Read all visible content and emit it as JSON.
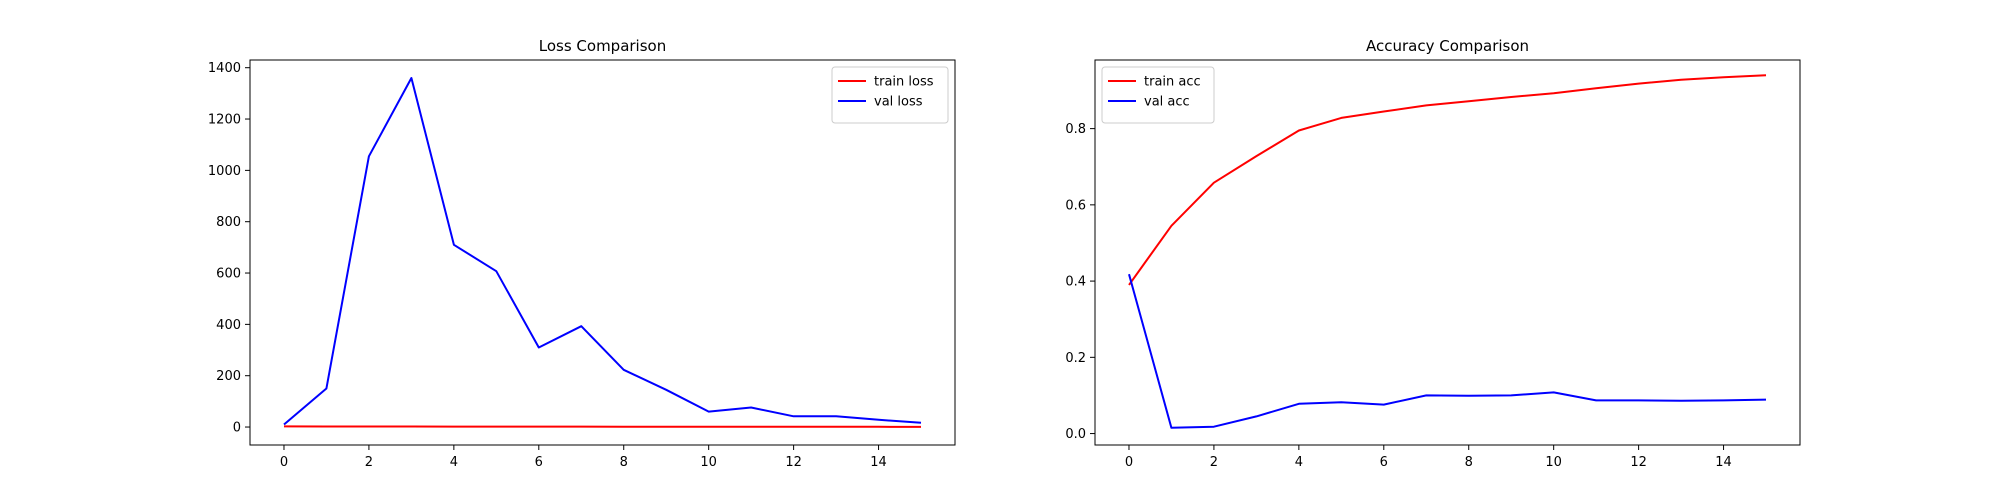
{
  "chart_data": [
    {
      "type": "line",
      "title": "Loss Comparison",
      "xlabel": "",
      "ylabel": "",
      "x": [
        0,
        1,
        2,
        3,
        4,
        5,
        6,
        7,
        8,
        9,
        10,
        11,
        12,
        13,
        14,
        15
      ],
      "xlim": [
        -0.8,
        15.8
      ],
      "ylim": [
        -70,
        1430
      ],
      "xticks": [
        0,
        2,
        4,
        6,
        8,
        10,
        12,
        14
      ],
      "yticks": [
        0,
        200,
        400,
        600,
        800,
        1000,
        1200,
        1400
      ],
      "legend_position": "top-right",
      "series": [
        {
          "name": "train loss",
          "color": "#ff0000",
          "values": [
            2.5,
            2.2,
            2.0,
            1.9,
            1.8,
            1.7,
            1.6,
            1.5,
            1.4,
            1.3,
            1.2,
            1.1,
            1.0,
            0.9,
            0.8,
            0.7
          ]
        },
        {
          "name": "val loss",
          "color": "#0000ff",
          "values": [
            10,
            150,
            1055,
            1360,
            710,
            607,
            310,
            393,
            223,
            145,
            60,
            76,
            42,
            42,
            28,
            17
          ]
        }
      ]
    },
    {
      "type": "line",
      "title": "Accuracy Comparison",
      "xlabel": "",
      "ylabel": "",
      "x": [
        0,
        1,
        2,
        3,
        4,
        5,
        6,
        7,
        8,
        9,
        10,
        11,
        12,
        13,
        14,
        15
      ],
      "xlim": [
        -0.8,
        15.8
      ],
      "ylim": [
        -0.03,
        0.98
      ],
      "xticks": [
        0,
        2,
        4,
        6,
        8,
        10,
        12,
        14
      ],
      "yticks": [
        0.0,
        0.2,
        0.4,
        0.6,
        0.8
      ],
      "legend_position": "top-left",
      "series": [
        {
          "name": "train acc",
          "color": "#ff0000",
          "values": [
            0.39,
            0.545,
            0.658,
            0.728,
            0.795,
            0.828,
            0.845,
            0.861,
            0.872,
            0.883,
            0.893,
            0.906,
            0.918,
            0.928,
            0.935,
            0.94
          ]
        },
        {
          "name": "val acc",
          "color": "#0000ff",
          "values": [
            0.418,
            0.015,
            0.018,
            0.045,
            0.078,
            0.082,
            0.076,
            0.1,
            0.099,
            0.1,
            0.108,
            0.087,
            0.087,
            0.086,
            0.087,
            0.089
          ]
        }
      ]
    }
  ]
}
